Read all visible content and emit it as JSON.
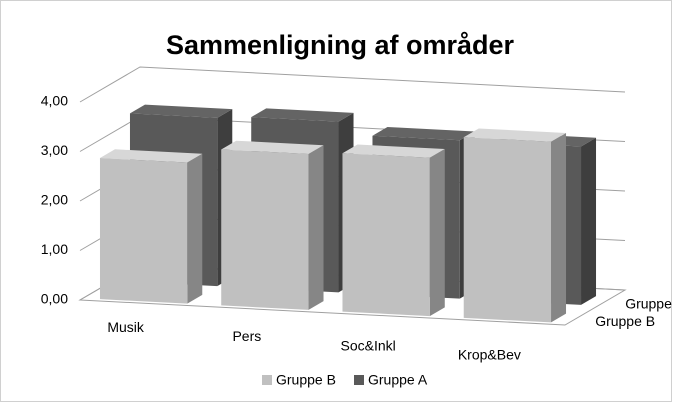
{
  "chart_data": {
    "type": "bar3d",
    "title": "Sammenligning af områder",
    "categories": [
      "Musik",
      "Pers",
      "Soc&Inkl",
      "Krop&Bev"
    ],
    "series": [
      {
        "name": "Gruppe B",
        "color": "#c0c0c0",
        "values": [
          2.85,
          3.15,
          3.2,
          3.65
        ]
      },
      {
        "name": "Gruppe A",
        "color": "#595959",
        "values": [
          3.4,
          3.45,
          3.2,
          3.2
        ]
      }
    ],
    "ylim": [
      0,
      4
    ],
    "yticks": [
      {
        "value": 0,
        "label": "0,00"
      },
      {
        "value": 1,
        "label": "1,00"
      },
      {
        "value": 2,
        "label": "2,00"
      },
      {
        "value": 3,
        "label": "3,00"
      },
      {
        "value": 4,
        "label": "4,00"
      }
    ],
    "grid": true,
    "legend": "bottom"
  }
}
